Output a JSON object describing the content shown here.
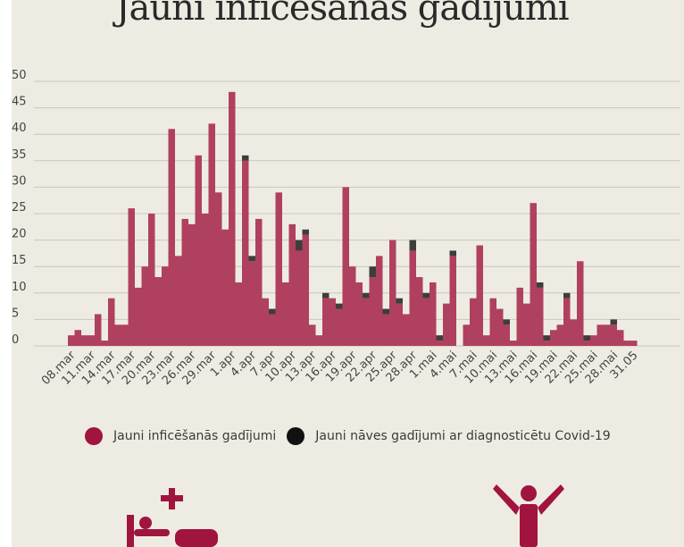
{
  "title": "Jauni inficēšanas gadījumi",
  "legend": {
    "infections_label": "Jauni inficēšanās gadījumi",
    "deaths_label": "Jauni nāves gadījumi ar diagnosticētu Covid-19"
  },
  "colors": {
    "infections": "#b0405f",
    "deaths": "#3d3d3d",
    "legend_infections": "#a0143f",
    "legend_deaths": "#111111",
    "icon": "#a0143f",
    "grid": "#c9c7bd"
  },
  "icons": [
    "hospital-bed-icon",
    "recovered-person-icon"
  ],
  "chart_data": {
    "type": "bar",
    "stacked": true,
    "ylim": [
      0,
      50
    ],
    "yticks": [
      0,
      5,
      10,
      15,
      20,
      25,
      30,
      35,
      40,
      45,
      50
    ],
    "grid": true,
    "legend_position": "bottom",
    "x_tick_labels": [
      "08.mar",
      "11.mar",
      "14.mar",
      "17.mar",
      "20.mar",
      "23.mar",
      "26.mar",
      "29.mar",
      "1.apr",
      "4.apr",
      "7.apr",
      "10.apr",
      "13.apr",
      "16.apr",
      "19.apr",
      "22.apr",
      "25.apr",
      "28.apr",
      "1.mai",
      "4.mai",
      "7.mai",
      "10.mai",
      "13.mai",
      "16.mai",
      "19.mai",
      "22.mai",
      "25.mai",
      "28.mai",
      "31.05"
    ],
    "series": [
      {
        "name": "Jauni inficēšanās gadījumi",
        "values": [
          2,
          3,
          2,
          2,
          6,
          1,
          9,
          4,
          4,
          26,
          11,
          15,
          25,
          13,
          15,
          41,
          17,
          24,
          23,
          36,
          25,
          42,
          29,
          22,
          48,
          12,
          35,
          16,
          24,
          9,
          6,
          29,
          12,
          23,
          18,
          21,
          4,
          2,
          9,
          9,
          7,
          30,
          15,
          12,
          9,
          13,
          17,
          6,
          20,
          8,
          6,
          18,
          13,
          9,
          12,
          1,
          8,
          17,
          0,
          4,
          9,
          19,
          2,
          9,
          7,
          4,
          1,
          11,
          8,
          27,
          11,
          1,
          3,
          4,
          9,
          5,
          16,
          1,
          2,
          4,
          4,
          4,
          3,
          1,
          1
        ]
      },
      {
        "name": "Jauni nāves gadījumi ar diagnosticētu Covid-19",
        "values": [
          0,
          0,
          0,
          0,
          0,
          0,
          0,
          0,
          0,
          0,
          0,
          0,
          0,
          0,
          0,
          0,
          0,
          0,
          0,
          0,
          0,
          0,
          0,
          0,
          0,
          0,
          1,
          1,
          0,
          0,
          1,
          0,
          0,
          0,
          2,
          1,
          0,
          0,
          1,
          0,
          1,
          0,
          0,
          0,
          1,
          2,
          0,
          1,
          0,
          1,
          0,
          2,
          0,
          1,
          0,
          1,
          0,
          1,
          0,
          0,
          0,
          0,
          0,
          0,
          0,
          1,
          0,
          0,
          0,
          0,
          1,
          1,
          0,
          0,
          1,
          0,
          0,
          1,
          0,
          0,
          0,
          1,
          0,
          0,
          0
        ]
      }
    ]
  }
}
